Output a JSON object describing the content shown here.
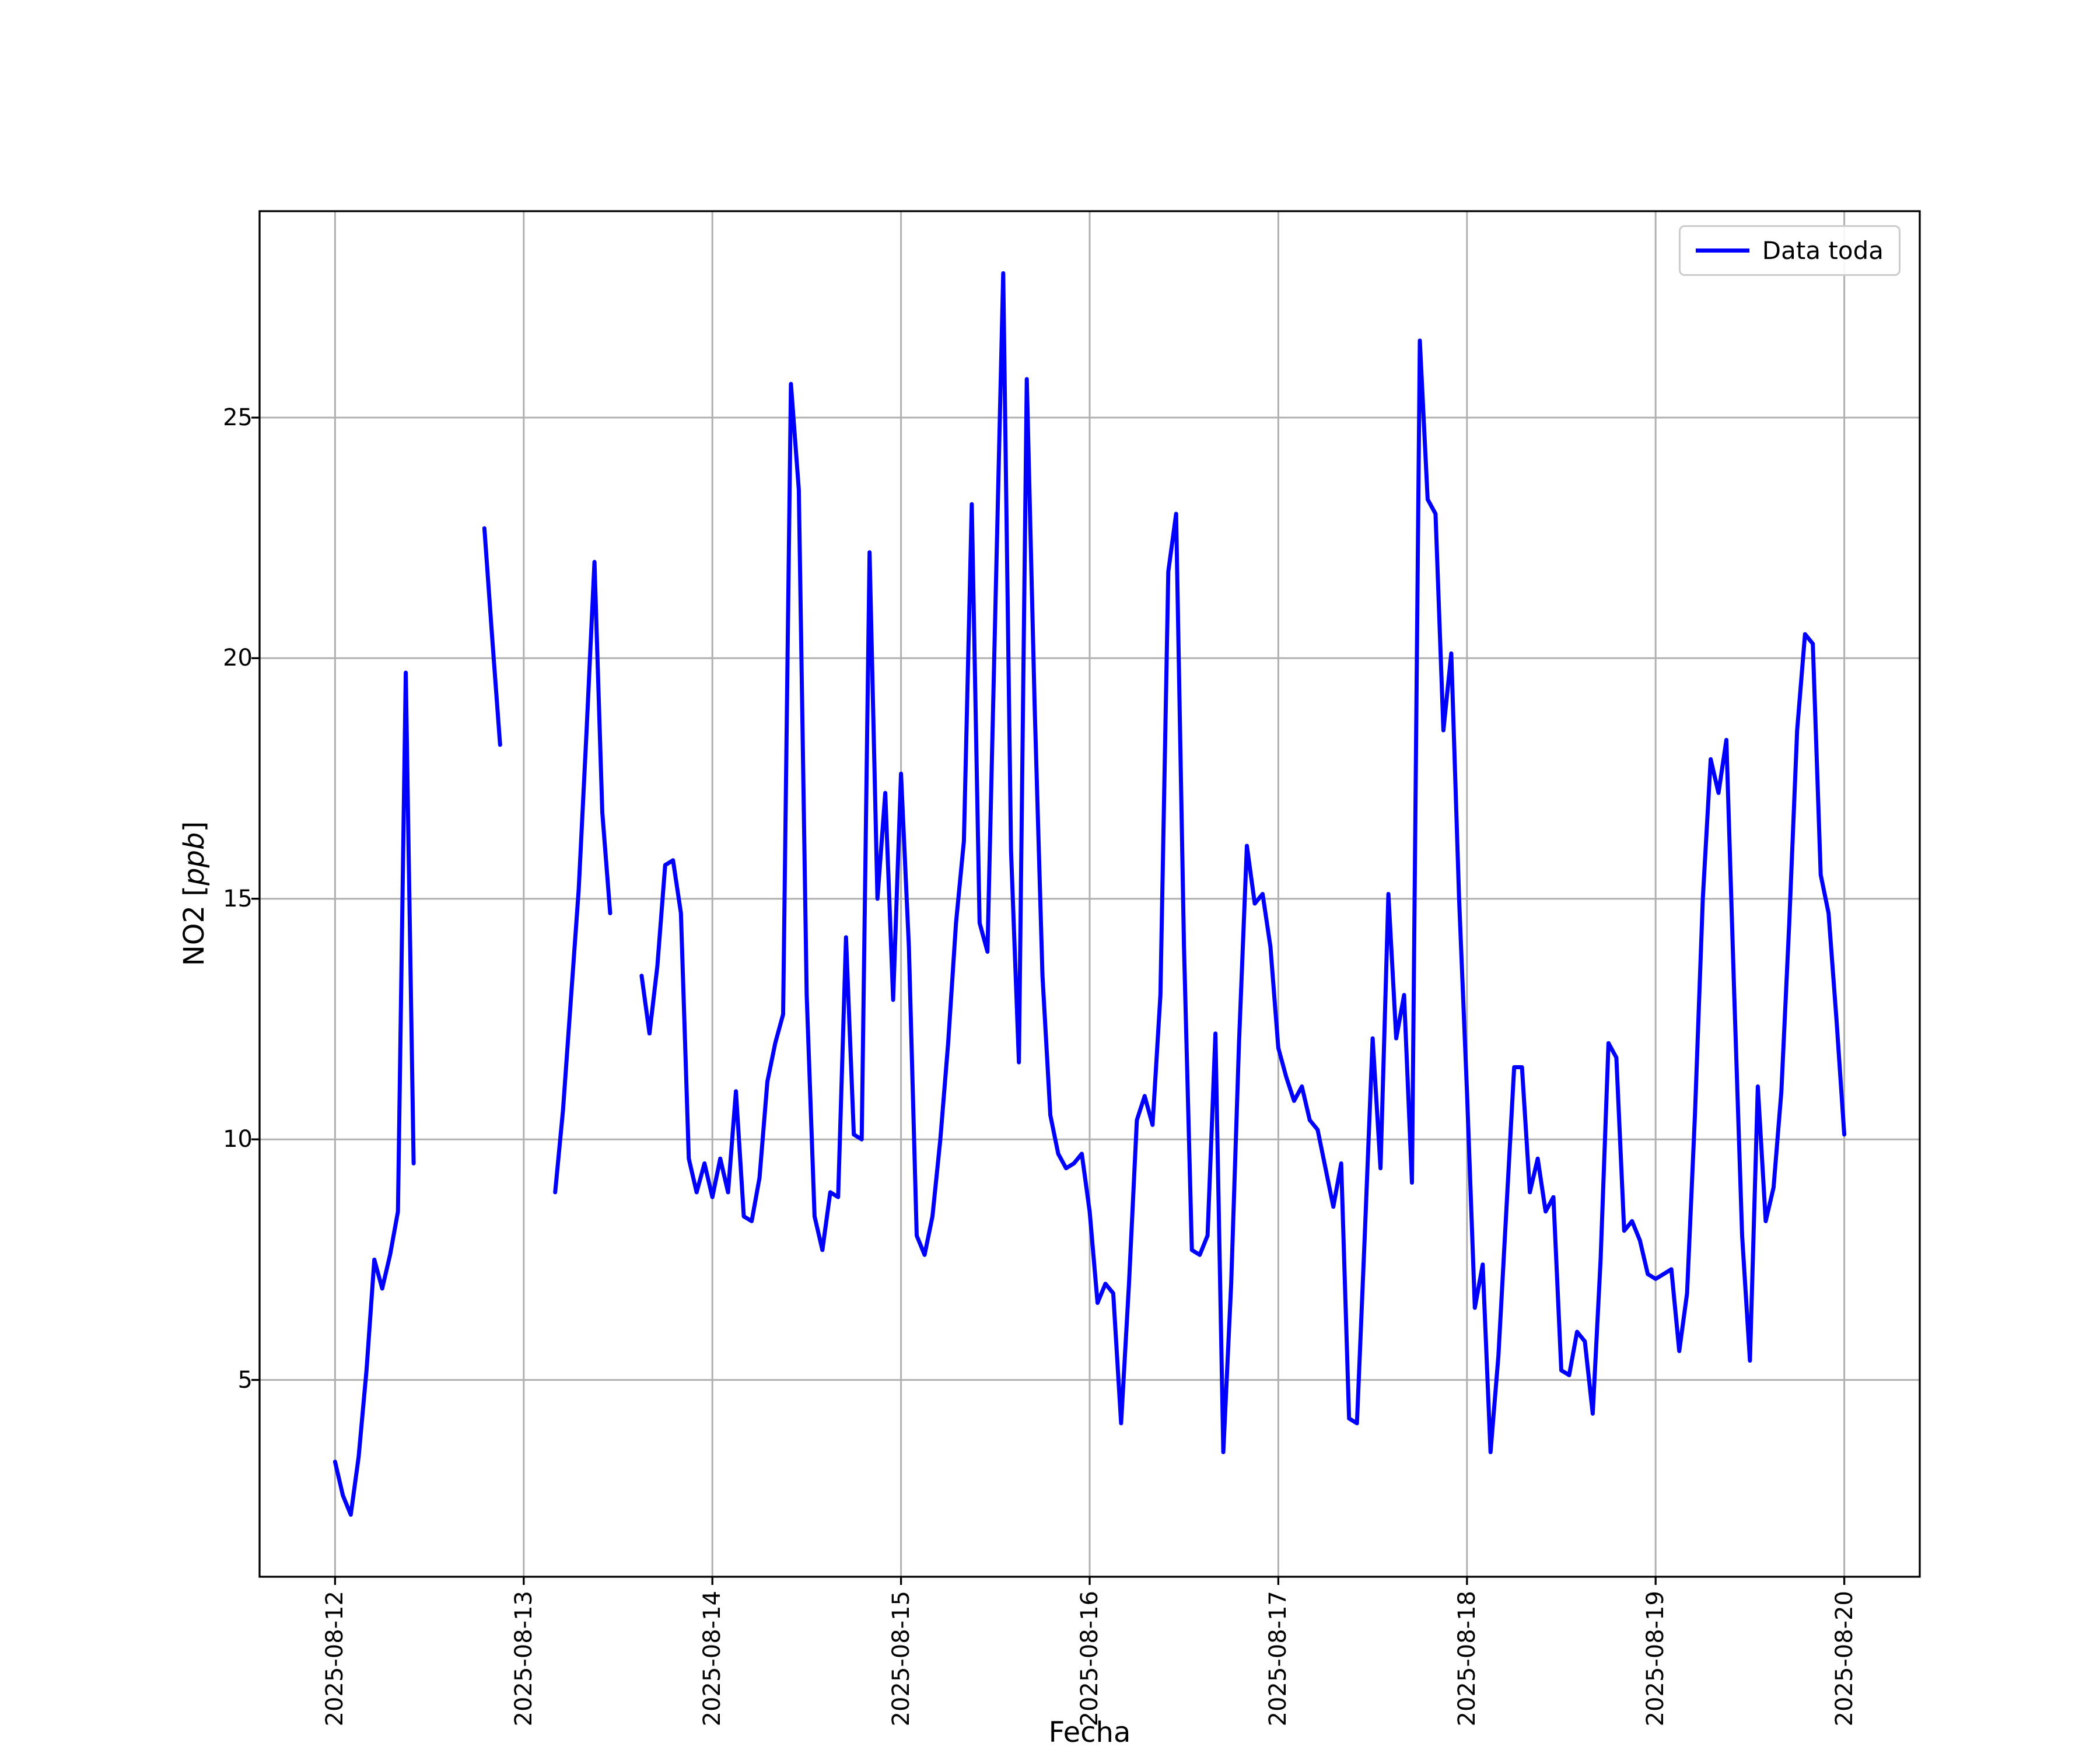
{
  "figure": {
    "background": "#ffffff",
    "grid_color": "#b0b0b0",
    "spine_color": "#000000"
  },
  "chart_data": {
    "type": "line",
    "title": "",
    "xlabel": "Fecha",
    "ylabel": "NO2 [ppb]",
    "ylabel_parts": {
      "prefix": "NO2 [",
      "italic": "ppb",
      "suffix": "]"
    },
    "grid": true,
    "legend": {
      "position": "upper right"
    },
    "xlim_days": [
      -0.4,
      8.4
    ],
    "ylim": [
      0.91,
      29.29
    ],
    "y_ticks": [
      5,
      10,
      15,
      20,
      25
    ],
    "x_tick_days": [
      0,
      1,
      2,
      3,
      4,
      5,
      6,
      7,
      8
    ],
    "x_tick_labels": [
      "2025-08-12",
      "2025-08-13",
      "2025-08-14",
      "2025-08-15",
      "2025-08-16",
      "2025-08-17",
      "2025-08-18",
      "2025-08-19",
      "2025-08-20"
    ],
    "series": [
      {
        "name": "Data toda",
        "color": "#0000ff",
        "start_date": "2025-08-12",
        "start_hour": 0,
        "step_hours": 1,
        "values": [
          3.3,
          2.6,
          2.2,
          3.4,
          5.2,
          7.5,
          6.9,
          7.6,
          8.5,
          19.7,
          9.5,
          null,
          null,
          null,
          null,
          null,
          null,
          null,
          null,
          22.7,
          20.4,
          18.2,
          null,
          null,
          null,
          null,
          null,
          null,
          8.9,
          10.6,
          12.9,
          15.2,
          18.5,
          22.0,
          16.8,
          14.7,
          null,
          null,
          null,
          13.4,
          12.2,
          13.6,
          15.7,
          15.8,
          14.7,
          9.6,
          8.9,
          9.5,
          8.8,
          9.6,
          8.9,
          11.0,
          8.4,
          8.3,
          9.2,
          11.2,
          12.0,
          12.6,
          25.7,
          23.5,
          13.0,
          8.4,
          7.7,
          8.9,
          8.8,
          14.2,
          10.1,
          10.0,
          22.2,
          15.0,
          17.2,
          12.9,
          17.6,
          14.0,
          8.0,
          7.6,
          8.4,
          10.0,
          12.0,
          14.5,
          16.2,
          23.2,
          14.5,
          13.9,
          21.0,
          28.0,
          16.0,
          11.6,
          25.8,
          19.0,
          13.4,
          10.5,
          9.7,
          9.4,
          9.5,
          9.7,
          8.5,
          6.6,
          7.0,
          6.8,
          4.1,
          7.0,
          10.4,
          10.9,
          10.3,
          13.0,
          21.8,
          23.0,
          14.0,
          7.7,
          7.6,
          8.0,
          12.2,
          3.5,
          7.0,
          12.0,
          16.1,
          14.9,
          15.1,
          14.0,
          11.9,
          11.3,
          10.8,
          11.1,
          10.4,
          10.2,
          9.4,
          8.6,
          9.5,
          4.2,
          4.1,
          8.0,
          12.1,
          9.4,
          15.1,
          12.1,
          13.0,
          9.1,
          26.6,
          23.3,
          23.0,
          18.5,
          20.1,
          15.0,
          11.0,
          6.5,
          7.4,
          3.5,
          5.5,
          8.5,
          11.5,
          11.5,
          8.9,
          9.6,
          8.5,
          8.8,
          5.2,
          5.1,
          6.0,
          5.8,
          4.3,
          7.5,
          12.0,
          11.7,
          8.1,
          8.3,
          7.9,
          7.2,
          7.1,
          7.2,
          7.3,
          5.6,
          6.8,
          10.5,
          15.0,
          17.9,
          17.2,
          18.3,
          13.0,
          8.0,
          5.4,
          11.1,
          8.3,
          9.0,
          11.0,
          14.5,
          18.5,
          20.5,
          20.3,
          15.5,
          14.7,
          12.5,
          10.1
        ]
      }
    ]
  }
}
